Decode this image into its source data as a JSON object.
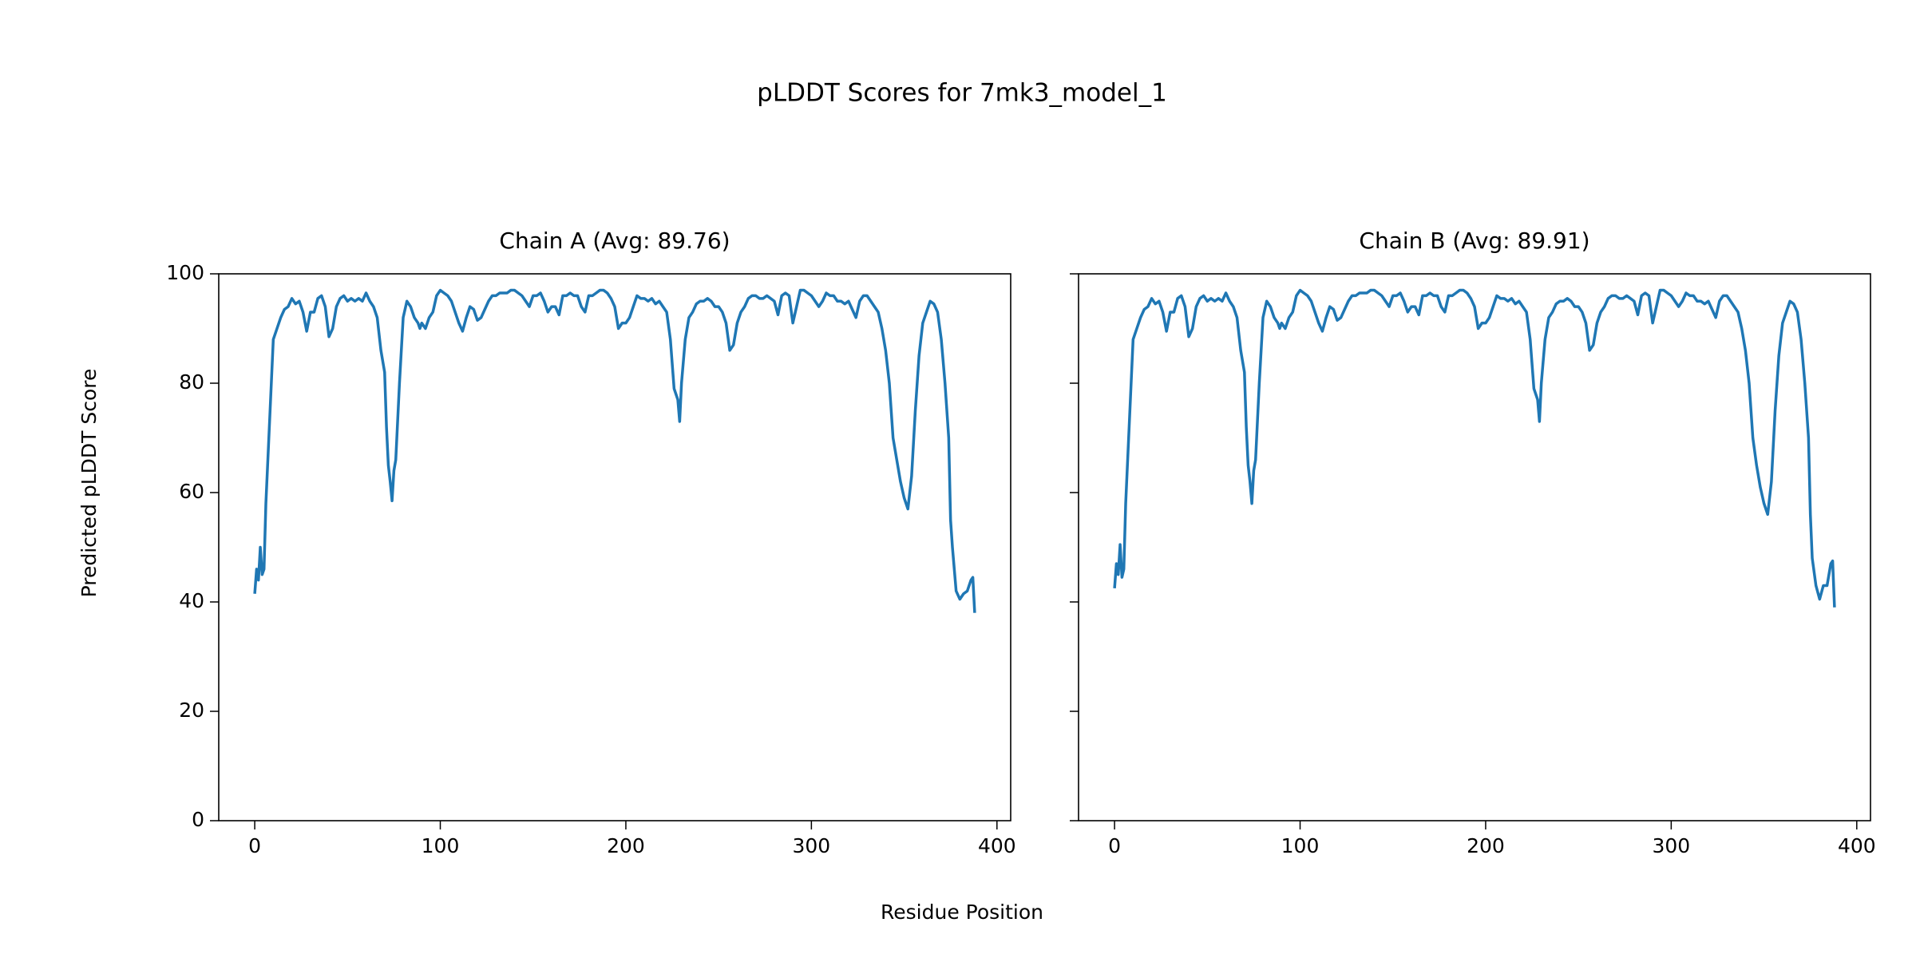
{
  "title": "pLDDT Scores for 7mk3_model_1",
  "xlabel": "Residue Position",
  "ylabel": "Predicted pLDDT Score",
  "chart_data": [
    {
      "type": "line",
      "title": "Chain A (Avg: 89.76)",
      "color": "#1f77b4",
      "x": [
        0,
        1,
        2,
        3,
        4,
        5,
        6,
        8,
        10,
        12,
        14,
        16,
        18,
        20,
        22,
        24,
        26,
        28,
        30,
        32,
        34,
        36,
        38,
        40,
        42,
        44,
        46,
        48,
        50,
        52,
        54,
        56,
        58,
        60,
        62,
        64,
        66,
        68,
        70,
        71,
        72,
        73,
        74,
        75,
        76,
        78,
        80,
        82,
        84,
        86,
        88,
        89,
        90,
        92,
        94,
        96,
        98,
        100,
        102,
        104,
        106,
        108,
        110,
        112,
        114,
        116,
        118,
        120,
        122,
        124,
        126,
        128,
        130,
        132,
        134,
        136,
        138,
        140,
        142,
        144,
        146,
        148,
        150,
        152,
        154,
        156,
        158,
        160,
        162,
        164,
        166,
        168,
        170,
        172,
        174,
        176,
        178,
        180,
        182,
        184,
        186,
        188,
        190,
        192,
        194,
        196,
        198,
        200,
        202,
        204,
        206,
        208,
        210,
        212,
        214,
        216,
        218,
        220,
        222,
        224,
        226,
        228,
        229,
        230,
        232,
        234,
        236,
        238,
        240,
        242,
        244,
        246,
        248,
        250,
        252,
        254,
        256,
        258,
        260,
        262,
        264,
        266,
        268,
        270,
        272,
        274,
        276,
        278,
        280,
        282,
        284,
        286,
        288,
        290,
        292,
        294,
        296,
        298,
        300,
        302,
        304,
        306,
        308,
        310,
        312,
        314,
        316,
        318,
        320,
        322,
        324,
        326,
        328,
        330,
        332,
        334,
        336,
        338,
        340,
        342,
        344,
        346,
        348,
        350,
        352,
        354,
        356,
        358,
        360,
        362,
        364,
        366,
        368,
        370,
        372,
        374,
        375,
        376,
        378,
        380,
        382,
        384,
        386,
        387,
        388
      ],
      "values": [
        41.5,
        46,
        44,
        50,
        45,
        46,
        58,
        73,
        88,
        90,
        92,
        93.5,
        94,
        95.5,
        94.5,
        95,
        93,
        89.5,
        93,
        93,
        95.5,
        96,
        94,
        88.5,
        90,
        94,
        95.5,
        96,
        95,
        95.5,
        95,
        95.5,
        95,
        96.5,
        95,
        94,
        92,
        86,
        82,
        72,
        65,
        62,
        58.5,
        64,
        66,
        80,
        92,
        95,
        94,
        92,
        91,
        90,
        91,
        90,
        92,
        93,
        96,
        97,
        96.5,
        96,
        95,
        93,
        91,
        89.5,
        92,
        94,
        93.5,
        91.5,
        92,
        93.5,
        95,
        96,
        96,
        96.5,
        96.5,
        96.5,
        97,
        97,
        96.5,
        96,
        95,
        94,
        96,
        96,
        96.5,
        95,
        93,
        94,
        94,
        92.5,
        96,
        96,
        96.5,
        96,
        96,
        94,
        93,
        96,
        96,
        96.5,
        97,
        97,
        96.5,
        95.5,
        94,
        90,
        91,
        91,
        92,
        94,
        96,
        95.5,
        95.5,
        95,
        95.5,
        94.5,
        95,
        94,
        93,
        88,
        79,
        77,
        73,
        80,
        88,
        92,
        93,
        94.5,
        95,
        95,
        95.5,
        95,
        94,
        94,
        93,
        91,
        86,
        87,
        91,
        93,
        94,
        95.5,
        96,
        96,
        95.5,
        95.5,
        96,
        95.5,
        95,
        92.5,
        96,
        96.5,
        96,
        91,
        94,
        97,
        97,
        96.5,
        96,
        95,
        94,
        95,
        96.5,
        96,
        96,
        95,
        95,
        94.5,
        95,
        93.5,
        92,
        95,
        96,
        96,
        95,
        94,
        93,
        90,
        86,
        80,
        70,
        66,
        62,
        59,
        57,
        63,
        75,
        85,
        91,
        93,
        95,
        94.5,
        93,
        88,
        80,
        70,
        55,
        50,
        42,
        40.5,
        41.5,
        42,
        44,
        44.5,
        38
      ],
      "xlim": [
        -19.4,
        407.4
      ],
      "ylim": [
        0,
        100
      ],
      "xticks": [
        0,
        100,
        200,
        300,
        400
      ],
      "yticks": [
        0,
        20,
        40,
        60,
        80,
        100
      ],
      "show_ytick_labels": true
    },
    {
      "type": "line",
      "title": "Chain B (Avg: 89.91)",
      "color": "#1f77b4",
      "x": [
        0,
        1,
        2,
        3,
        4,
        5,
        6,
        8,
        10,
        12,
        14,
        16,
        18,
        20,
        22,
        24,
        26,
        28,
        30,
        32,
        34,
        36,
        38,
        40,
        42,
        44,
        46,
        48,
        50,
        52,
        54,
        56,
        58,
        60,
        62,
        64,
        66,
        68,
        70,
        71,
        72,
        73,
        74,
        75,
        76,
        78,
        80,
        82,
        84,
        86,
        88,
        89,
        90,
        92,
        94,
        96,
        98,
        100,
        102,
        104,
        106,
        108,
        110,
        112,
        114,
        116,
        118,
        120,
        122,
        124,
        126,
        128,
        130,
        132,
        134,
        136,
        138,
        140,
        142,
        144,
        146,
        148,
        150,
        152,
        154,
        156,
        158,
        160,
        162,
        164,
        166,
        168,
        170,
        172,
        174,
        176,
        178,
        180,
        182,
        184,
        186,
        188,
        190,
        192,
        194,
        196,
        198,
        200,
        202,
        204,
        206,
        208,
        210,
        212,
        214,
        216,
        218,
        220,
        222,
        224,
        226,
        228,
        229,
        230,
        232,
        234,
        236,
        238,
        240,
        242,
        244,
        246,
        248,
        250,
        252,
        254,
        256,
        258,
        260,
        262,
        264,
        266,
        268,
        270,
        272,
        274,
        276,
        278,
        280,
        282,
        284,
        286,
        288,
        290,
        292,
        294,
        296,
        298,
        300,
        302,
        304,
        306,
        308,
        310,
        312,
        314,
        316,
        318,
        320,
        322,
        324,
        326,
        328,
        330,
        332,
        334,
        336,
        338,
        340,
        342,
        344,
        346,
        348,
        350,
        352,
        354,
        356,
        358,
        360,
        362,
        364,
        366,
        368,
        370,
        372,
        374,
        375,
        376,
        378,
        380,
        382,
        384,
        386,
        387,
        388
      ],
      "values": [
        42.5,
        47,
        45,
        50.5,
        44.5,
        46,
        58,
        73,
        88,
        90,
        92,
        93.5,
        94,
        95.5,
        94.5,
        95,
        93,
        89.5,
        93,
        93,
        95.5,
        96,
        94,
        88.5,
        90,
        94,
        95.5,
        96,
        95,
        95.5,
        95,
        95.5,
        95,
        96.5,
        95,
        94,
        92,
        86,
        82,
        72,
        65,
        62,
        58,
        64,
        66,
        80,
        92,
        95,
        94,
        92,
        91,
        90,
        91,
        90,
        92,
        93,
        96,
        97,
        96.5,
        96,
        95,
        93,
        91,
        89.5,
        92,
        94,
        93.5,
        91.5,
        92,
        93.5,
        95,
        96,
        96,
        96.5,
        96.5,
        96.5,
        97,
        97,
        96.5,
        96,
        95,
        94,
        96,
        96,
        96.5,
        95,
        93,
        94,
        94,
        92.5,
        96,
        96,
        96.5,
        96,
        96,
        94,
        93,
        96,
        96,
        96.5,
        97,
        97,
        96.5,
        95.5,
        94,
        90,
        91,
        91,
        92,
        94,
        96,
        95.5,
        95.5,
        95,
        95.5,
        94.5,
        95,
        94,
        93,
        88,
        79,
        77,
        73,
        80,
        88,
        92,
        93,
        94.5,
        95,
        95,
        95.5,
        95,
        94,
        94,
        93,
        91,
        86,
        87,
        91,
        93,
        94,
        95.5,
        96,
        96,
        95.5,
        95.5,
        96,
        95.5,
        95,
        92.5,
        96,
        96.5,
        96,
        91,
        94,
        97,
        97,
        96.5,
        96,
        95,
        94,
        95,
        96.5,
        96,
        96,
        95,
        95,
        94.5,
        95,
        93.5,
        92,
        95,
        96,
        96,
        95,
        94,
        93,
        90,
        86,
        80,
        70,
        65,
        61,
        58,
        56,
        62,
        75,
        85,
        91,
        93,
        95,
        94.5,
        93,
        88,
        80,
        70,
        56,
        48,
        43,
        40.5,
        43,
        43,
        47,
        47.5,
        39
      ],
      "xlim": [
        -19.4,
        407.4
      ],
      "ylim": [
        0,
        100
      ],
      "xticks": [
        0,
        100,
        200,
        300,
        400
      ],
      "yticks": [
        0,
        20,
        40,
        60,
        80,
        100
      ],
      "show_ytick_labels": false
    }
  ]
}
